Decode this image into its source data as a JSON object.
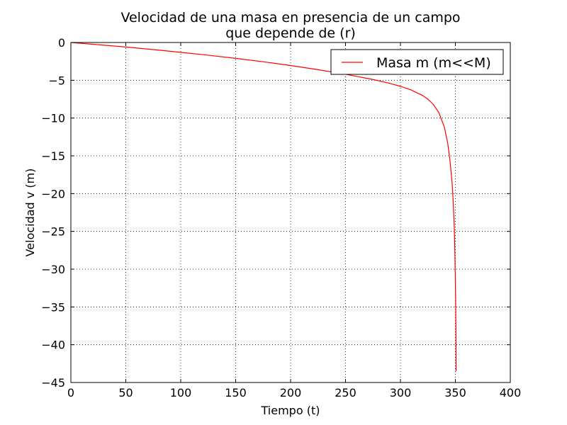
{
  "chart_data": {
    "type": "line",
    "title_line1": "Velocidad de una masa en presencia de un campo",
    "title_line2": "que depende de (r)",
    "xlabel": "Tiempo (t)",
    "ylabel": "Velocidad v (m)",
    "xlim": [
      0,
      400
    ],
    "ylim": [
      -45,
      0
    ],
    "xticks": [
      0,
      50,
      100,
      150,
      200,
      250,
      300,
      350,
      400
    ],
    "yticks": [
      0,
      -5,
      -10,
      -15,
      -20,
      -25,
      -30,
      -35,
      -40,
      -45
    ],
    "grid": true,
    "legend_position": "top-right",
    "series": [
      {
        "name": "Masa m (m<<M)",
        "color": "#ff0000",
        "x": [
          0,
          25,
          50,
          75,
          100,
          125,
          150,
          175,
          200,
          225,
          250,
          275,
          290,
          300,
          310,
          320,
          325,
          330,
          335,
          340,
          343,
          345,
          347,
          348,
          349,
          349.5,
          350,
          350.3,
          350.5,
          350.6,
          350.7
        ],
        "y": [
          0,
          -0.29,
          -0.6,
          -0.94,
          -1.3,
          -1.68,
          -2.1,
          -2.55,
          -3.05,
          -3.6,
          -4.2,
          -4.9,
          -5.4,
          -5.8,
          -6.3,
          -7.0,
          -7.5,
          -8.2,
          -9.3,
          -11.2,
          -13.3,
          -15.5,
          -18.5,
          -21.0,
          -24.5,
          -27.5,
          -31.5,
          -35.0,
          -38.0,
          -40.5,
          -43.5
        ]
      }
    ]
  }
}
